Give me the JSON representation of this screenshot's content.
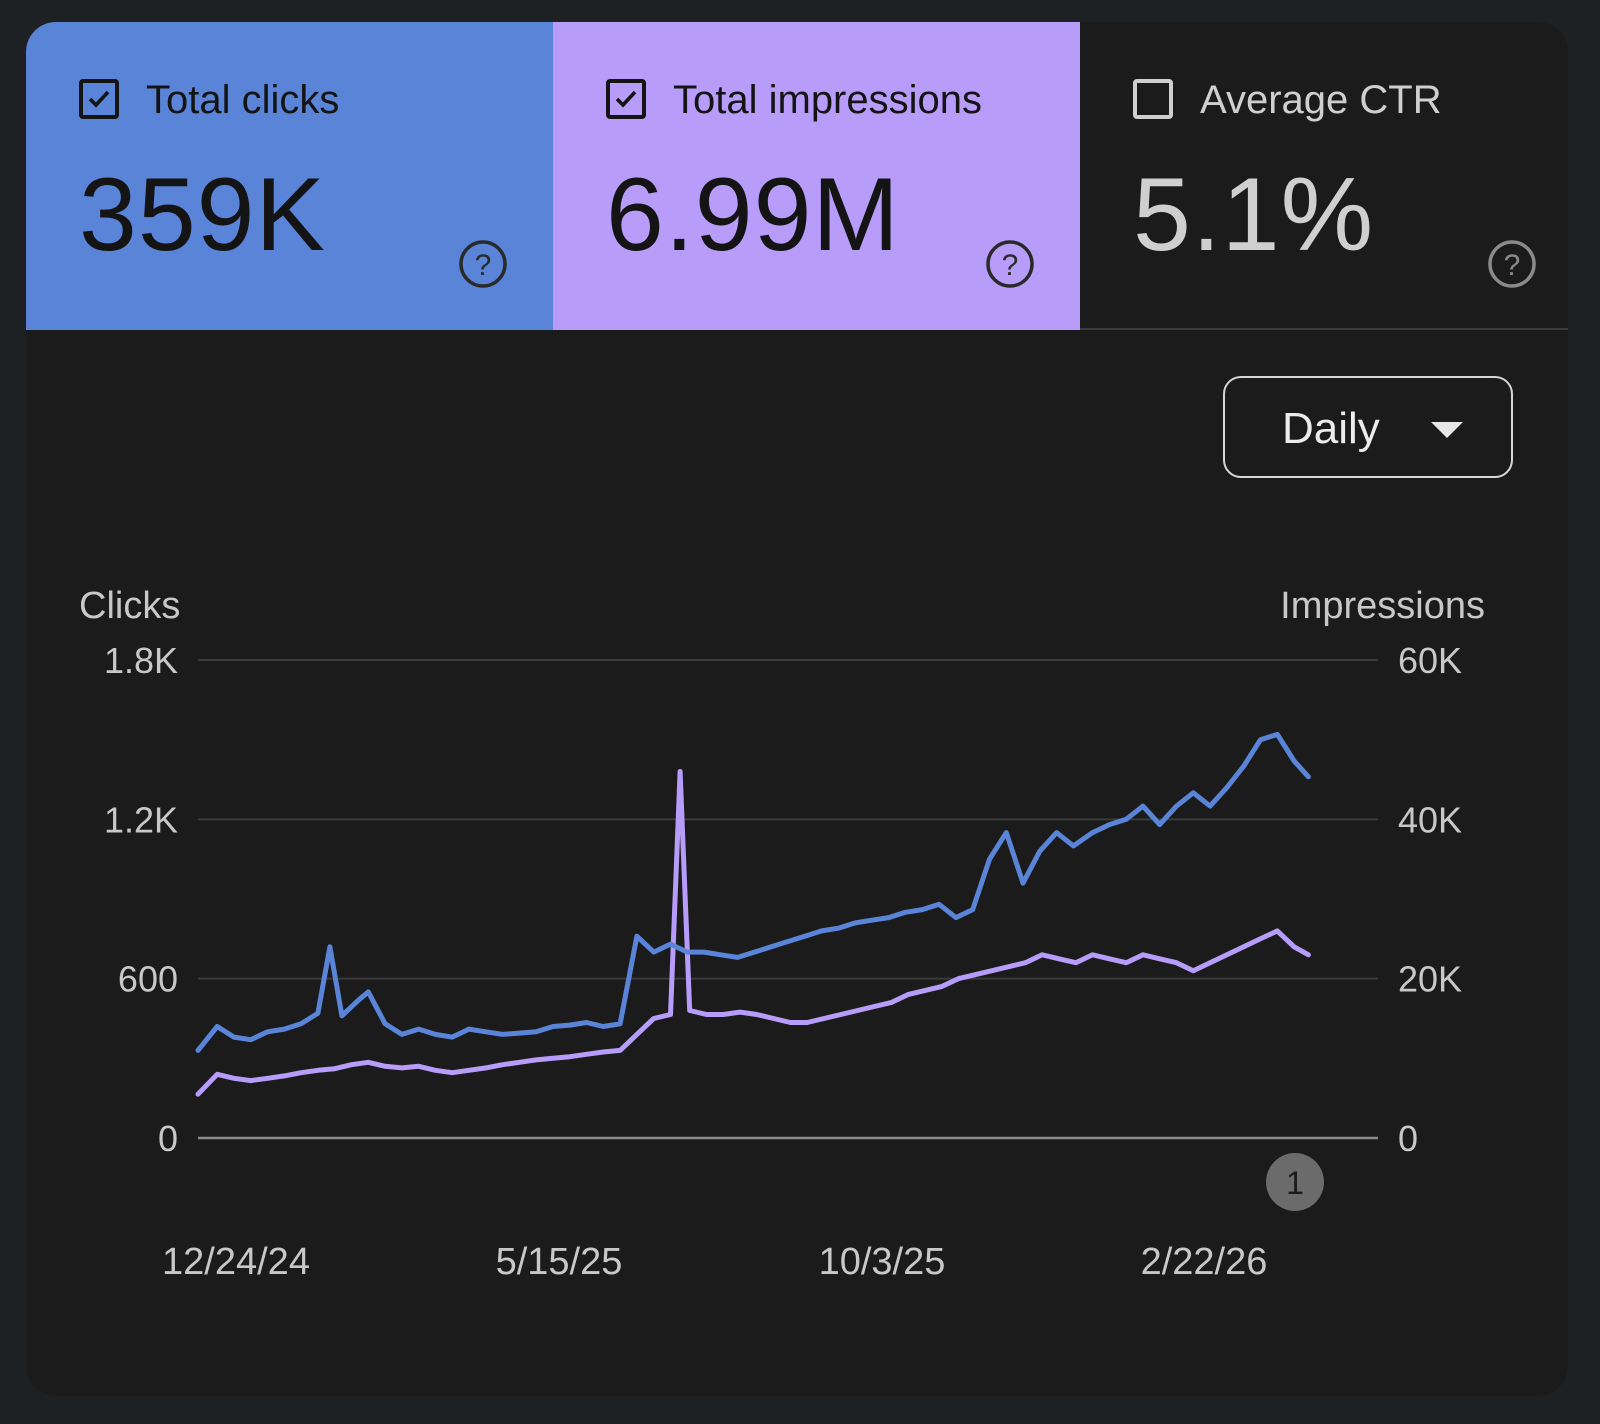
{
  "metrics": [
    {
      "label": "Total clicks",
      "value": "359K",
      "checked": true,
      "bg": "#5a84d8",
      "fg": "#141414"
    },
    {
      "label": "Total impressions",
      "value": "6.99M",
      "checked": true,
      "bg": "#b79cfa",
      "fg": "#141414"
    },
    {
      "label": "Average CTR",
      "value": "5.1%",
      "checked": false,
      "bg": "#1b1b1c",
      "fg": "#cfcfcf"
    }
  ],
  "help_icon": "question-circle-icon",
  "granularity": {
    "selected": "Daily",
    "icon": "caret-down-icon"
  },
  "annotation_badge": "1",
  "chart_data": {
    "type": "line",
    "dual_axis": true,
    "ylabel_left": "Clicks",
    "ylabel_right": "Impressions",
    "left_ticks": [
      "0",
      "600",
      "1.2K",
      "1.8K"
    ],
    "right_ticks": [
      "0",
      "20K",
      "40K",
      "60K"
    ],
    "ylim_left": [
      0,
      1800
    ],
    "ylim_right": [
      0,
      60000
    ],
    "x_ticks": [
      "12/24/24",
      "5/15/25",
      "10/3/25",
      "2/22/26"
    ],
    "xlim": [
      "2024-12-24",
      "2026-04-30"
    ],
    "grid": true,
    "colors": {
      "clicks": "#5a84d8",
      "impressions": "#b79cfa"
    },
    "series": [
      {
        "name": "Clicks",
        "axis": "left",
        "color": "#5a84d8",
        "points": [
          [
            "2024-12-24",
            330
          ],
          [
            "2025-01-01",
            420
          ],
          [
            "2025-01-08",
            380
          ],
          [
            "2025-01-15",
            370
          ],
          [
            "2025-01-22",
            400
          ],
          [
            "2025-01-29",
            410
          ],
          [
            "2025-02-05",
            430
          ],
          [
            "2025-02-12",
            470
          ],
          [
            "2025-02-17",
            720
          ],
          [
            "2025-02-22",
            460
          ],
          [
            "2025-03-01",
            520
          ],
          [
            "2025-03-05",
            550
          ],
          [
            "2025-03-12",
            430
          ],
          [
            "2025-03-19",
            390
          ],
          [
            "2025-03-26",
            410
          ],
          [
            "2025-04-02",
            390
          ],
          [
            "2025-04-09",
            380
          ],
          [
            "2025-04-16",
            410
          ],
          [
            "2025-04-23",
            400
          ],
          [
            "2025-04-30",
            390
          ],
          [
            "2025-05-07",
            395
          ],
          [
            "2025-05-14",
            400
          ],
          [
            "2025-05-21",
            420
          ],
          [
            "2025-05-28",
            425
          ],
          [
            "2025-06-04",
            435
          ],
          [
            "2025-06-11",
            420
          ],
          [
            "2025-06-18",
            430
          ],
          [
            "2025-06-25",
            760
          ],
          [
            "2025-07-02",
            700
          ],
          [
            "2025-07-09",
            730
          ],
          [
            "2025-07-16",
            700
          ],
          [
            "2025-07-23",
            700
          ],
          [
            "2025-07-30",
            690
          ],
          [
            "2025-08-06",
            680
          ],
          [
            "2025-08-13",
            700
          ],
          [
            "2025-08-20",
            720
          ],
          [
            "2025-08-27",
            740
          ],
          [
            "2025-09-03",
            760
          ],
          [
            "2025-09-10",
            780
          ],
          [
            "2025-09-17",
            790
          ],
          [
            "2025-09-24",
            810
          ],
          [
            "2025-10-01",
            820
          ],
          [
            "2025-10-08",
            830
          ],
          [
            "2025-10-15",
            850
          ],
          [
            "2025-10-22",
            860
          ],
          [
            "2025-10-29",
            880
          ],
          [
            "2025-11-05",
            830
          ],
          [
            "2025-11-12",
            860
          ],
          [
            "2025-11-19",
            1050
          ],
          [
            "2025-11-26",
            1150
          ],
          [
            "2025-12-03",
            960
          ],
          [
            "2025-12-10",
            1080
          ],
          [
            "2025-12-17",
            1150
          ],
          [
            "2025-12-24",
            1100
          ],
          [
            "2026-01-01",
            1150
          ],
          [
            "2026-01-08",
            1180
          ],
          [
            "2026-01-15",
            1200
          ],
          [
            "2026-01-22",
            1250
          ],
          [
            "2026-01-29",
            1180
          ],
          [
            "2026-02-05",
            1250
          ],
          [
            "2026-02-12",
            1300
          ],
          [
            "2026-02-19",
            1250
          ],
          [
            "2026-02-26",
            1320
          ],
          [
            "2026-03-05",
            1400
          ],
          [
            "2026-03-12",
            1500
          ],
          [
            "2026-03-19",
            1520
          ],
          [
            "2026-03-26",
            1420
          ],
          [
            "2026-04-01",
            1360
          ]
        ]
      },
      {
        "name": "Impressions",
        "axis": "right",
        "color": "#b79cfa",
        "points": [
          [
            "2024-12-24",
            5500
          ],
          [
            "2025-01-01",
            8000
          ],
          [
            "2025-01-08",
            7500
          ],
          [
            "2025-01-15",
            7200
          ],
          [
            "2025-01-22",
            7500
          ],
          [
            "2025-01-29",
            7800
          ],
          [
            "2025-02-05",
            8200
          ],
          [
            "2025-02-12",
            8500
          ],
          [
            "2025-02-19",
            8700
          ],
          [
            "2025-02-26",
            9200
          ],
          [
            "2025-03-05",
            9500
          ],
          [
            "2025-03-12",
            9000
          ],
          [
            "2025-03-19",
            8800
          ],
          [
            "2025-03-26",
            9000
          ],
          [
            "2025-04-02",
            8500
          ],
          [
            "2025-04-09",
            8200
          ],
          [
            "2025-04-16",
            8500
          ],
          [
            "2025-04-23",
            8800
          ],
          [
            "2025-04-30",
            9200
          ],
          [
            "2025-05-07",
            9500
          ],
          [
            "2025-05-14",
            9800
          ],
          [
            "2025-05-21",
            10000
          ],
          [
            "2025-05-28",
            10200
          ],
          [
            "2025-06-04",
            10500
          ],
          [
            "2025-06-11",
            10800
          ],
          [
            "2025-06-18",
            11000
          ],
          [
            "2025-06-25",
            13000
          ],
          [
            "2025-07-02",
            15000
          ],
          [
            "2025-07-09",
            15500
          ],
          [
            "2025-07-13",
            46000
          ],
          [
            "2025-07-17",
            16000
          ],
          [
            "2025-07-24",
            15500
          ],
          [
            "2025-07-31",
            15500
          ],
          [
            "2025-08-07",
            15800
          ],
          [
            "2025-08-14",
            15500
          ],
          [
            "2025-08-21",
            15000
          ],
          [
            "2025-08-28",
            14500
          ],
          [
            "2025-09-04",
            14500
          ],
          [
            "2025-09-11",
            15000
          ],
          [
            "2025-09-18",
            15500
          ],
          [
            "2025-09-25",
            16000
          ],
          [
            "2025-10-02",
            16500
          ],
          [
            "2025-10-09",
            17000
          ],
          [
            "2025-10-16",
            18000
          ],
          [
            "2025-10-23",
            18500
          ],
          [
            "2025-10-30",
            19000
          ],
          [
            "2025-11-06",
            20000
          ],
          [
            "2025-11-13",
            20500
          ],
          [
            "2025-11-20",
            21000
          ],
          [
            "2025-11-27",
            21500
          ],
          [
            "2025-12-04",
            22000
          ],
          [
            "2025-12-11",
            23000
          ],
          [
            "2025-12-18",
            22500
          ],
          [
            "2025-12-25",
            22000
          ],
          [
            "2026-01-01",
            23000
          ],
          [
            "2026-01-08",
            22500
          ],
          [
            "2026-01-15",
            22000
          ],
          [
            "2026-01-22",
            23000
          ],
          [
            "2026-01-29",
            22500
          ],
          [
            "2026-02-05",
            22000
          ],
          [
            "2026-02-12",
            21000
          ],
          [
            "2026-02-19",
            22000
          ],
          [
            "2026-02-26",
            23000
          ],
          [
            "2026-03-05",
            24000
          ],
          [
            "2026-03-12",
            25000
          ],
          [
            "2026-03-19",
            26000
          ],
          [
            "2026-03-26",
            24000
          ],
          [
            "2026-04-01",
            23000
          ]
        ]
      }
    ]
  }
}
